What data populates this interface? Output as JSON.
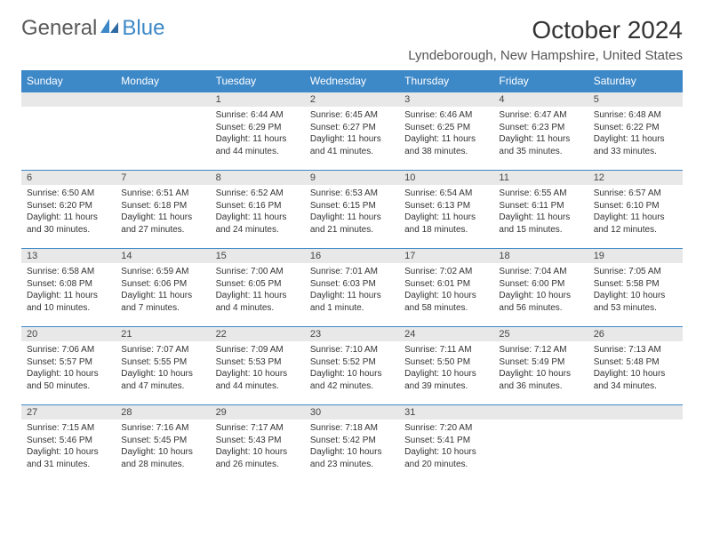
{
  "logo": {
    "part1": "General",
    "part2": "Blue"
  },
  "title": "October 2024",
  "location": "Lyndeborough, New Hampshire, United States",
  "colors": {
    "header_bg": "#3d88c7",
    "header_fg": "#ffffff",
    "daynum_bg": "#e8e8e8",
    "border": "#3d88c7",
    "text": "#333333"
  },
  "weekdays": [
    "Sunday",
    "Monday",
    "Tuesday",
    "Wednesday",
    "Thursday",
    "Friday",
    "Saturday"
  ],
  "weeks": [
    [
      null,
      null,
      {
        "n": "1",
        "sr": "Sunrise: 6:44 AM",
        "ss": "Sunset: 6:29 PM",
        "dl": "Daylight: 11 hours and 44 minutes."
      },
      {
        "n": "2",
        "sr": "Sunrise: 6:45 AM",
        "ss": "Sunset: 6:27 PM",
        "dl": "Daylight: 11 hours and 41 minutes."
      },
      {
        "n": "3",
        "sr": "Sunrise: 6:46 AM",
        "ss": "Sunset: 6:25 PM",
        "dl": "Daylight: 11 hours and 38 minutes."
      },
      {
        "n": "4",
        "sr": "Sunrise: 6:47 AM",
        "ss": "Sunset: 6:23 PM",
        "dl": "Daylight: 11 hours and 35 minutes."
      },
      {
        "n": "5",
        "sr": "Sunrise: 6:48 AM",
        "ss": "Sunset: 6:22 PM",
        "dl": "Daylight: 11 hours and 33 minutes."
      }
    ],
    [
      {
        "n": "6",
        "sr": "Sunrise: 6:50 AM",
        "ss": "Sunset: 6:20 PM",
        "dl": "Daylight: 11 hours and 30 minutes."
      },
      {
        "n": "7",
        "sr": "Sunrise: 6:51 AM",
        "ss": "Sunset: 6:18 PM",
        "dl": "Daylight: 11 hours and 27 minutes."
      },
      {
        "n": "8",
        "sr": "Sunrise: 6:52 AM",
        "ss": "Sunset: 6:16 PM",
        "dl": "Daylight: 11 hours and 24 minutes."
      },
      {
        "n": "9",
        "sr": "Sunrise: 6:53 AM",
        "ss": "Sunset: 6:15 PM",
        "dl": "Daylight: 11 hours and 21 minutes."
      },
      {
        "n": "10",
        "sr": "Sunrise: 6:54 AM",
        "ss": "Sunset: 6:13 PM",
        "dl": "Daylight: 11 hours and 18 minutes."
      },
      {
        "n": "11",
        "sr": "Sunrise: 6:55 AM",
        "ss": "Sunset: 6:11 PM",
        "dl": "Daylight: 11 hours and 15 minutes."
      },
      {
        "n": "12",
        "sr": "Sunrise: 6:57 AM",
        "ss": "Sunset: 6:10 PM",
        "dl": "Daylight: 11 hours and 12 minutes."
      }
    ],
    [
      {
        "n": "13",
        "sr": "Sunrise: 6:58 AM",
        "ss": "Sunset: 6:08 PM",
        "dl": "Daylight: 11 hours and 10 minutes."
      },
      {
        "n": "14",
        "sr": "Sunrise: 6:59 AM",
        "ss": "Sunset: 6:06 PM",
        "dl": "Daylight: 11 hours and 7 minutes."
      },
      {
        "n": "15",
        "sr": "Sunrise: 7:00 AM",
        "ss": "Sunset: 6:05 PM",
        "dl": "Daylight: 11 hours and 4 minutes."
      },
      {
        "n": "16",
        "sr": "Sunrise: 7:01 AM",
        "ss": "Sunset: 6:03 PM",
        "dl": "Daylight: 11 hours and 1 minute."
      },
      {
        "n": "17",
        "sr": "Sunrise: 7:02 AM",
        "ss": "Sunset: 6:01 PM",
        "dl": "Daylight: 10 hours and 58 minutes."
      },
      {
        "n": "18",
        "sr": "Sunrise: 7:04 AM",
        "ss": "Sunset: 6:00 PM",
        "dl": "Daylight: 10 hours and 56 minutes."
      },
      {
        "n": "19",
        "sr": "Sunrise: 7:05 AM",
        "ss": "Sunset: 5:58 PM",
        "dl": "Daylight: 10 hours and 53 minutes."
      }
    ],
    [
      {
        "n": "20",
        "sr": "Sunrise: 7:06 AM",
        "ss": "Sunset: 5:57 PM",
        "dl": "Daylight: 10 hours and 50 minutes."
      },
      {
        "n": "21",
        "sr": "Sunrise: 7:07 AM",
        "ss": "Sunset: 5:55 PM",
        "dl": "Daylight: 10 hours and 47 minutes."
      },
      {
        "n": "22",
        "sr": "Sunrise: 7:09 AM",
        "ss": "Sunset: 5:53 PM",
        "dl": "Daylight: 10 hours and 44 minutes."
      },
      {
        "n": "23",
        "sr": "Sunrise: 7:10 AM",
        "ss": "Sunset: 5:52 PM",
        "dl": "Daylight: 10 hours and 42 minutes."
      },
      {
        "n": "24",
        "sr": "Sunrise: 7:11 AM",
        "ss": "Sunset: 5:50 PM",
        "dl": "Daylight: 10 hours and 39 minutes."
      },
      {
        "n": "25",
        "sr": "Sunrise: 7:12 AM",
        "ss": "Sunset: 5:49 PM",
        "dl": "Daylight: 10 hours and 36 minutes."
      },
      {
        "n": "26",
        "sr": "Sunrise: 7:13 AM",
        "ss": "Sunset: 5:48 PM",
        "dl": "Daylight: 10 hours and 34 minutes."
      }
    ],
    [
      {
        "n": "27",
        "sr": "Sunrise: 7:15 AM",
        "ss": "Sunset: 5:46 PM",
        "dl": "Daylight: 10 hours and 31 minutes."
      },
      {
        "n": "28",
        "sr": "Sunrise: 7:16 AM",
        "ss": "Sunset: 5:45 PM",
        "dl": "Daylight: 10 hours and 28 minutes."
      },
      {
        "n": "29",
        "sr": "Sunrise: 7:17 AM",
        "ss": "Sunset: 5:43 PM",
        "dl": "Daylight: 10 hours and 26 minutes."
      },
      {
        "n": "30",
        "sr": "Sunrise: 7:18 AM",
        "ss": "Sunset: 5:42 PM",
        "dl": "Daylight: 10 hours and 23 minutes."
      },
      {
        "n": "31",
        "sr": "Sunrise: 7:20 AM",
        "ss": "Sunset: 5:41 PM",
        "dl": "Daylight: 10 hours and 20 minutes."
      },
      null,
      null
    ]
  ]
}
